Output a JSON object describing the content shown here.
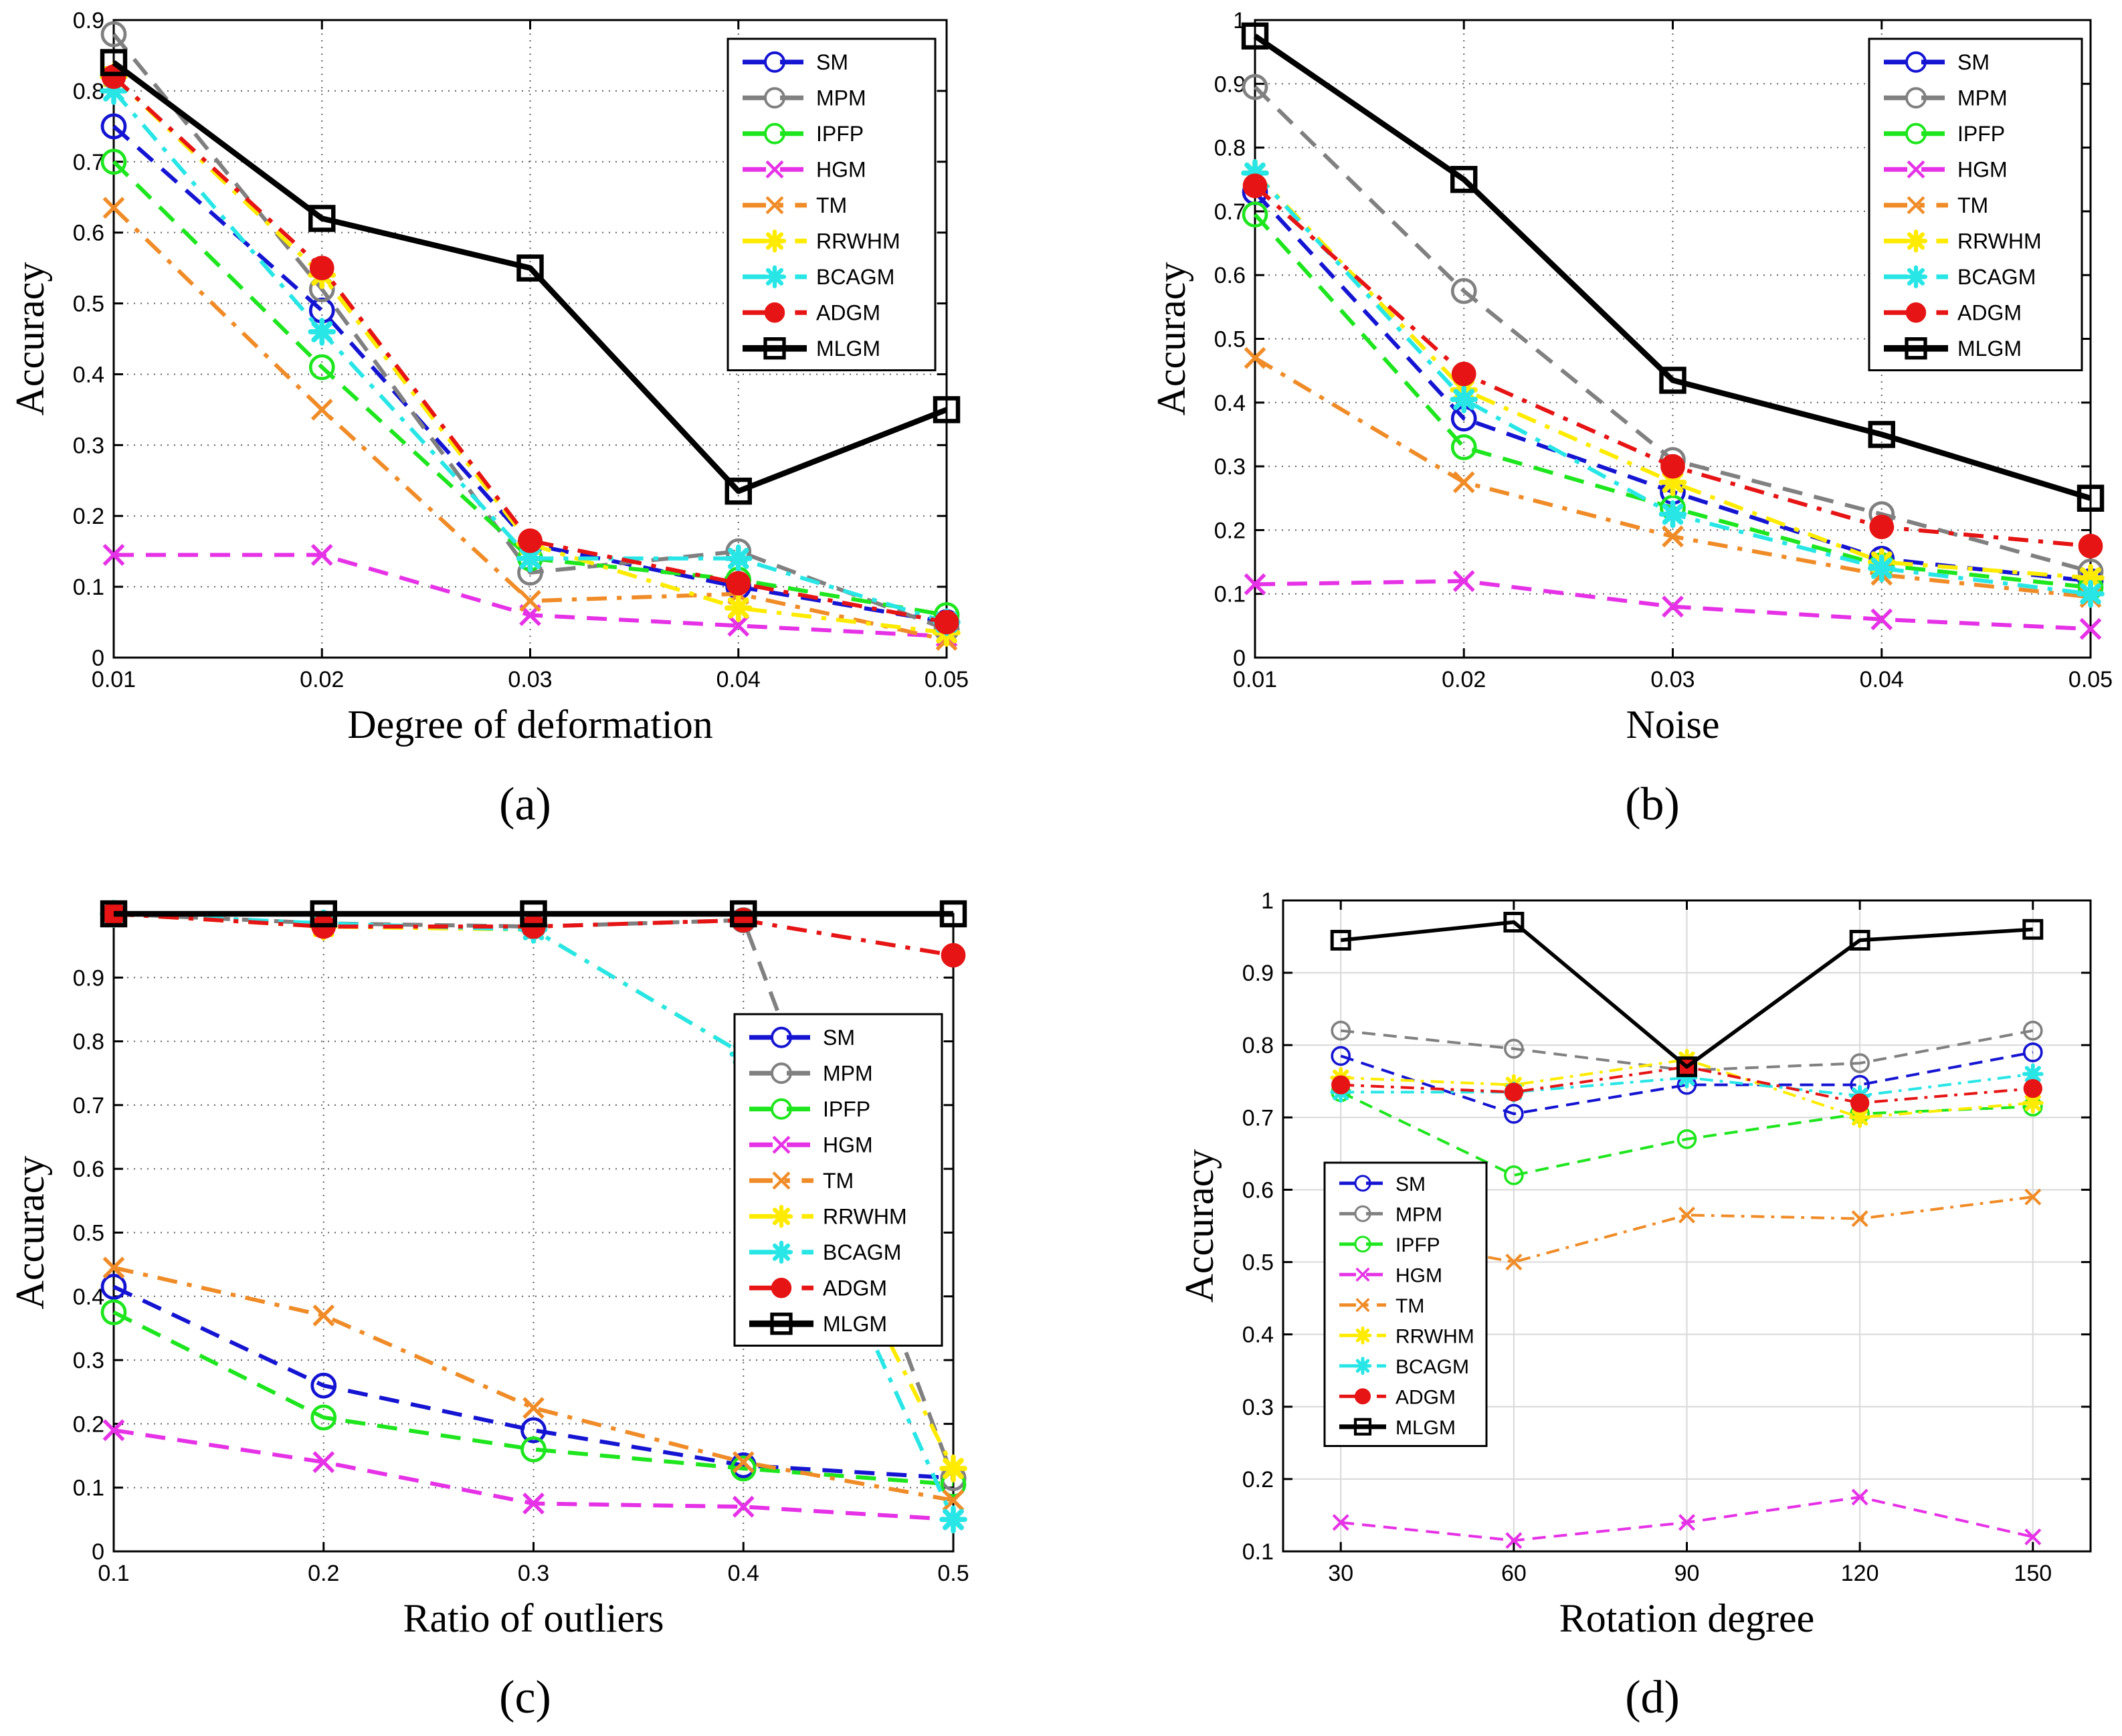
{
  "legend_entries": [
    "SM",
    "MPM",
    "IPFP",
    "HGM",
    "TM",
    "RRWHM",
    "BCAGM",
    "ADGM",
    "MLGM"
  ],
  "series_styles": {
    "SM": {
      "color": "#1414d2",
      "dash": "dash",
      "marker": "circle"
    },
    "MPM": {
      "color": "#808080",
      "dash": "dash",
      "marker": "circle"
    },
    "IPFP": {
      "color": "#1ee61e",
      "dash": "dash",
      "marker": "circle"
    },
    "HGM": {
      "color": "#e632e6",
      "dash": "dash",
      "marker": "x"
    },
    "TM": {
      "color": "#f08c28",
      "dash": "dashdot",
      "marker": "x"
    },
    "RRWHM": {
      "color": "#ffeb00",
      "dash": "dashdot",
      "marker": "star"
    },
    "BCAGM": {
      "color": "#28e6e6",
      "dash": "dashdot",
      "marker": "star"
    },
    "ADGM": {
      "color": "#e61414",
      "dash": "dashdot",
      "marker": "dot"
    },
    "MLGM": {
      "color": "#000000",
      "dash": "solid",
      "marker": "square"
    }
  },
  "chart_data": [
    {
      "panel_label": "(a)",
      "type": "line",
      "xlabel": "Degree of deformation",
      "ylabel": "Accuracy",
      "x": [
        0.01,
        0.02,
        0.03,
        0.04,
        0.05
      ],
      "xlim": [
        0.01,
        0.05
      ],
      "ylim": [
        0,
        0.9
      ],
      "xticks": [
        "0.01",
        "0.02",
        "0.03",
        "0.04",
        "0.05"
      ],
      "yticks": [
        "0",
        "0.1",
        "0.2",
        "0.3",
        "0.4",
        "0.5",
        "0.6",
        "0.7",
        "0.8",
        "0.9"
      ],
      "grid": "dotted",
      "legend": "top-right",
      "series": [
        {
          "name": "SM",
          "values": [
            0.75,
            0.49,
            0.16,
            0.1,
            0.05
          ]
        },
        {
          "name": "MPM",
          "values": [
            0.88,
            0.52,
            0.12,
            0.15,
            0.04
          ]
        },
        {
          "name": "IPFP",
          "values": [
            0.7,
            0.41,
            0.14,
            0.11,
            0.06
          ]
        },
        {
          "name": "HGM",
          "values": [
            0.145,
            0.145,
            0.06,
            0.045,
            0.03
          ]
        },
        {
          "name": "TM",
          "values": [
            0.635,
            0.35,
            0.08,
            0.09,
            0.025
          ]
        },
        {
          "name": "RRWHM",
          "values": [
            0.82,
            0.54,
            0.16,
            0.07,
            0.035
          ]
        },
        {
          "name": "BCAGM",
          "values": [
            0.8,
            0.46,
            0.14,
            0.14,
            0.05
          ]
        },
        {
          "name": "ADGM",
          "values": [
            0.82,
            0.55,
            0.165,
            0.105,
            0.05
          ]
        },
        {
          "name": "MLGM",
          "values": [
            0.84,
            0.62,
            0.55,
            0.235,
            0.35
          ]
        }
      ]
    },
    {
      "panel_label": "(b)",
      "type": "line",
      "xlabel": "Noise",
      "ylabel": "Accuracy",
      "x": [
        0.01,
        0.02,
        0.03,
        0.04,
        0.05
      ],
      "xlim": [
        0.01,
        0.05
      ],
      "ylim": [
        0,
        1
      ],
      "xticks": [
        "0.01",
        "0.02",
        "0.03",
        "0.04",
        "0.05"
      ],
      "yticks": [
        "0",
        "0.1",
        "0.2",
        "0.3",
        "0.4",
        "0.5",
        "0.6",
        "0.7",
        "0.8",
        "0.9",
        "1"
      ],
      "grid": "dotted",
      "legend": "top-right",
      "series": [
        {
          "name": "SM",
          "values": [
            0.73,
            0.375,
            0.26,
            0.155,
            0.12
          ]
        },
        {
          "name": "MPM",
          "values": [
            0.895,
            0.575,
            0.31,
            0.225,
            0.135
          ]
        },
        {
          "name": "IPFP",
          "values": [
            0.695,
            0.33,
            0.235,
            0.145,
            0.11
          ]
        },
        {
          "name": "HGM",
          "values": [
            0.115,
            0.12,
            0.08,
            0.06,
            0.045
          ]
        },
        {
          "name": "TM",
          "values": [
            0.47,
            0.275,
            0.19,
            0.13,
            0.095
          ]
        },
        {
          "name": "RRWHM",
          "values": [
            0.76,
            0.42,
            0.275,
            0.15,
            0.125
          ]
        },
        {
          "name": "BCAGM",
          "values": [
            0.76,
            0.405,
            0.225,
            0.14,
            0.1
          ]
        },
        {
          "name": "ADGM",
          "values": [
            0.74,
            0.445,
            0.3,
            0.205,
            0.175
          ]
        },
        {
          "name": "MLGM",
          "values": [
            0.975,
            0.75,
            0.435,
            0.35,
            0.25
          ]
        }
      ]
    },
    {
      "panel_label": "(c)",
      "type": "line",
      "xlabel": "Ratio of outliers",
      "ylabel": "Accuracy",
      "x": [
        0.1,
        0.2,
        0.3,
        0.4,
        0.5
      ],
      "xlim": [
        0.1,
        0.5
      ],
      "ylim": [
        0,
        1.0
      ],
      "xticks": [
        "0.1",
        "0.2",
        "0.3",
        "0.4",
        "0.5"
      ],
      "yticks": [
        "0",
        "0.1",
        "0.2",
        "0.3",
        "0.4",
        "0.5",
        "0.6",
        "0.7",
        "0.8",
        "0.9"
      ],
      "grid": "dotted",
      "legend": "right",
      "series": [
        {
          "name": "SM",
          "values": [
            0.415,
            0.26,
            0.19,
            0.135,
            0.115
          ]
        },
        {
          "name": "MPM",
          "values": [
            1.0,
            0.985,
            0.98,
            0.99,
            0.115
          ]
        },
        {
          "name": "IPFP",
          "values": [
            0.375,
            0.21,
            0.16,
            0.13,
            0.105
          ]
        },
        {
          "name": "HGM",
          "values": [
            0.19,
            0.14,
            0.075,
            0.07,
            0.05
          ]
        },
        {
          "name": "TM",
          "values": [
            0.445,
            0.37,
            0.225,
            0.14,
            0.08
          ]
        },
        {
          "name": "RRWHM",
          "values": [
            1.0,
            0.98,
            0.975,
            0.78,
            0.13
          ]
        },
        {
          "name": "BCAGM",
          "values": [
            1.0,
            0.985,
            0.975,
            0.78,
            0.05
          ]
        },
        {
          "name": "ADGM",
          "values": [
            1.0,
            0.98,
            0.98,
            0.99,
            0.935
          ]
        },
        {
          "name": "MLGM",
          "values": [
            1.0,
            1.0,
            1.0,
            1.0,
            1.0
          ]
        }
      ]
    },
    {
      "panel_label": "(d)",
      "type": "line",
      "xlabel": "Rotation degree",
      "ylabel": "Accuracy",
      "x": [
        30,
        60,
        90,
        120,
        150
      ],
      "xlim": [
        20,
        160
      ],
      "ylim": [
        0.1,
        1
      ],
      "xticks": [
        "30",
        "60",
        "90",
        "120",
        "150"
      ],
      "yticks": [
        "0.1",
        "0.2",
        "0.3",
        "0.4",
        "0.5",
        "0.6",
        "0.7",
        "0.8",
        "0.9",
        "1"
      ],
      "grid": "solid-light",
      "legend": "left",
      "series": [
        {
          "name": "SM",
          "values": [
            0.785,
            0.705,
            0.745,
            0.745,
            0.79
          ]
        },
        {
          "name": "MPM",
          "values": [
            0.82,
            0.795,
            0.765,
            0.775,
            0.82
          ]
        },
        {
          "name": "IPFP",
          "values": [
            0.735,
            0.62,
            0.67,
            0.705,
            0.715
          ]
        },
        {
          "name": "HGM",
          "values": [
            0.14,
            0.115,
            0.14,
            0.175,
            0.12
          ]
        },
        {
          "name": "TM",
          "values": [
            0.545,
            0.5,
            0.565,
            0.56,
            0.59
          ]
        },
        {
          "name": "RRWHM",
          "values": [
            0.755,
            0.745,
            0.78,
            0.7,
            0.72
          ]
        },
        {
          "name": "BCAGM",
          "values": [
            0.735,
            0.735,
            0.755,
            0.73,
            0.76
          ]
        },
        {
          "name": "ADGM",
          "values": [
            0.745,
            0.735,
            0.77,
            0.72,
            0.74
          ]
        },
        {
          "name": "MLGM",
          "values": [
            0.945,
            0.97,
            0.77,
            0.945,
            0.96
          ]
        }
      ]
    }
  ]
}
